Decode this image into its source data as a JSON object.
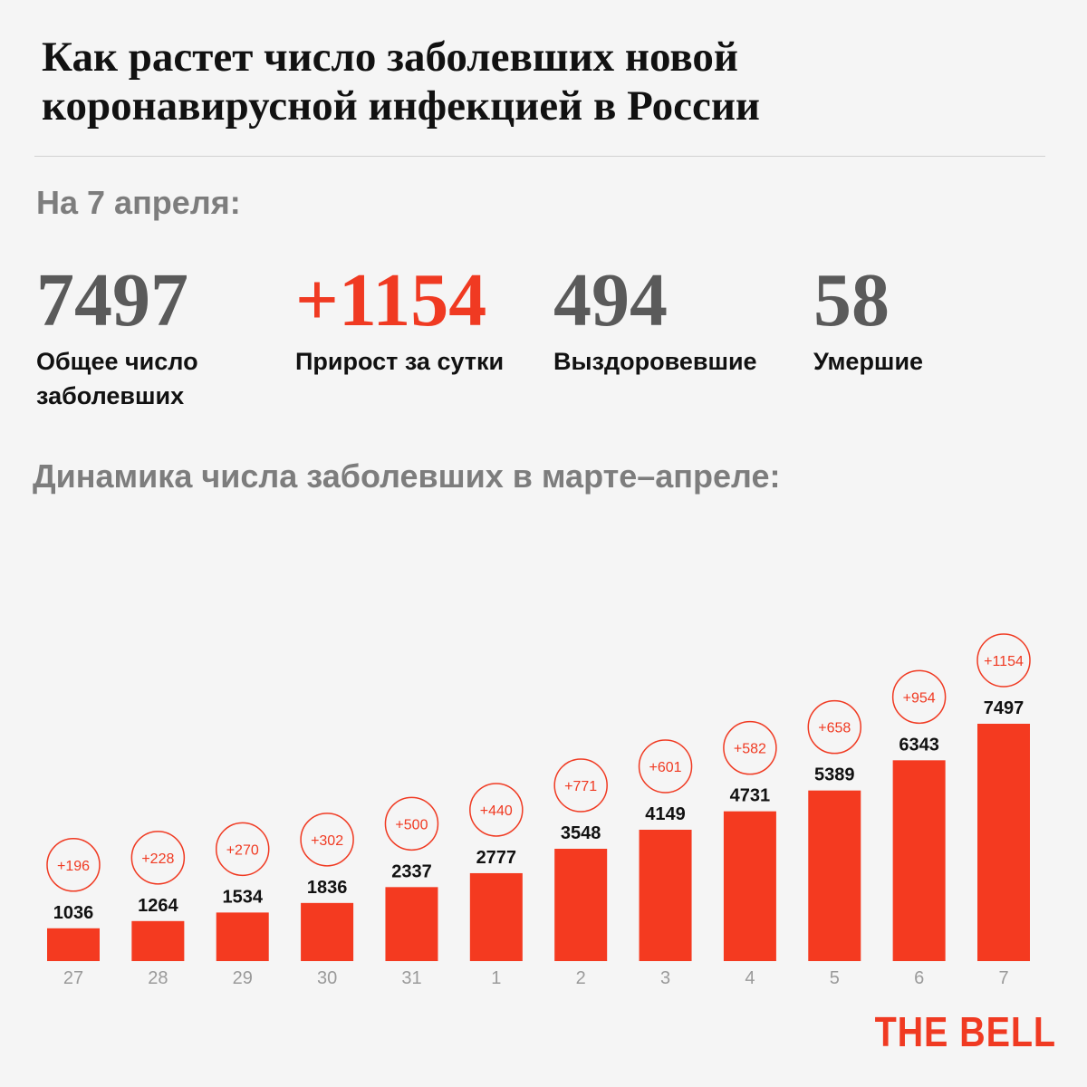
{
  "header": {
    "title_line1": "Как растет число заболевших новой",
    "title_line2": "коронавирусной инфекцией в России"
  },
  "summary": {
    "date_label": "На 7 апреля:",
    "stats": [
      {
        "value": "7497",
        "label_line1": "Общее число",
        "label_line2": "заболевших"
      },
      {
        "value": "+1154",
        "label_line1": "Прирост за сутки",
        "label_line2": ""
      },
      {
        "value": "494",
        "label_line1": "Выздоровевшие",
        "label_line2": ""
      },
      {
        "value": "58",
        "label_line1": "Умершие",
        "label_line2": ""
      }
    ]
  },
  "chart_heading": "Динамика числа заболевших в марте–апреле:",
  "brand": {
    "logo_text": "THE BELL"
  },
  "colors": {
    "accent": "#f03a22",
    "bar": "#f43a20",
    "text_dark": "#111111",
    "text_gray": "#7d7d7d",
    "stat_gray": "#5a5a5a",
    "tick_gray": "#9a9a9a",
    "background": "#f5f5f5"
  },
  "chart_data": {
    "type": "bar",
    "categories": [
      "27",
      "28",
      "29",
      "30",
      "31",
      "1",
      "2",
      "3",
      "4",
      "5",
      "6",
      "7"
    ],
    "values": [
      1036,
      1264,
      1534,
      1836,
      2337,
      2777,
      3548,
      4149,
      4731,
      5389,
      6343,
      7497
    ],
    "increments": [
      "+196",
      "+228",
      "+270",
      "+302",
      "+500",
      "+440",
      "+771",
      "+601",
      "+582",
      "+658",
      "+954",
      "+1154"
    ],
    "title": "Динамика числа заболевших в марте–апреле:",
    "xlabel": "",
    "ylabel": "",
    "ylim": [
      0,
      7497
    ],
    "grid": false,
    "legend": "none"
  }
}
